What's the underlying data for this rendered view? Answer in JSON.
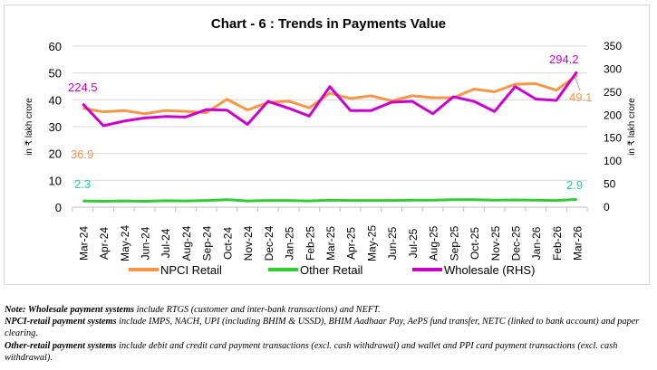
{
  "chart_data": {
    "type": "line",
    "title": "Chart - 6 : Trends in Payments Value",
    "ylabel_left": "in ₹ lakh crore",
    "ylabel_right": "in ₹ lakh crore",
    "ylim_left": [
      0,
      60
    ],
    "ylim_right": [
      0,
      350
    ],
    "yticks_left": [
      0,
      10,
      20,
      30,
      40,
      50,
      60
    ],
    "yticks_right": [
      0,
      50,
      100,
      150,
      200,
      250,
      300,
      350
    ],
    "grid": true,
    "legend_position": "bottom",
    "categories": [
      "Mar-24",
      "Apr-24",
      "May-24",
      "Jun-24",
      "Jul-24",
      "Aug-24",
      "Sep-24",
      "Oct-24",
      "Nov-24",
      "Dec-24",
      "Jan-25",
      "Feb-25",
      "Mar-25",
      "Apr-25",
      "May-25",
      "Jun-25",
      "Jul-25",
      "Aug-25",
      "Sep-25",
      "Oct-25",
      "Nov-25",
      "Dec-25",
      "Jan-26",
      "Feb-26",
      "Mar-26"
    ],
    "series": [
      {
        "name": "NPCI Retail",
        "axis": "left",
        "color": "#f79646",
        "values": [
          36.9,
          35.5,
          36.0,
          34.8,
          36.0,
          35.7,
          35.2,
          40.2,
          36.2,
          39.0,
          39.5,
          37.0,
          42.5,
          40.5,
          41.5,
          39.6,
          41.5,
          40.8,
          40.8,
          44.0,
          43.0,
          45.8,
          46.0,
          43.6,
          49.1
        ],
        "labels": {
          "first": "36.9",
          "last": "49.1"
        }
      },
      {
        "name": "Other Retail",
        "axis": "left",
        "color": "#33cc33",
        "values": [
          2.3,
          2.2,
          2.3,
          2.2,
          2.4,
          2.3,
          2.5,
          2.8,
          2.3,
          2.5,
          2.5,
          2.3,
          2.6,
          2.5,
          2.5,
          2.5,
          2.6,
          2.6,
          2.8,
          2.8,
          2.6,
          2.7,
          2.6,
          2.5,
          2.9
        ],
        "labels": {
          "first": "2.3",
          "last": "2.9"
        }
      },
      {
        "name": "Wholesale (RHS)",
        "axis": "right",
        "color": "#cc00cc",
        "values": [
          224.5,
          177,
          187,
          194,
          197,
          196,
          212,
          211,
          180,
          230,
          215,
          198,
          262,
          210,
          210,
          228,
          230,
          203,
          240,
          230,
          208,
          262,
          235,
          232,
          294.2
        ],
        "labels": {
          "first": "224.5",
          "last": "294.2"
        }
      }
    ]
  },
  "notes": {
    "line1_bold": "Note: Wholesale payment systems",
    "line1_rest": " include RTGS (customer and inter-bank transactions) and NEFT.",
    "line2_bold": "NPCI-retail payment systems",
    "line2_rest": " include IMPS, NACH, UPI (including BHIM & USSD), BHIM Aadhaar Pay, AePS fund transfer, NETC (linked to bank account) and paper clearing.",
    "line3_bold": "Other-retail payment systems",
    "line3_rest": " include debit and credit card payment transactions (excl. cash withdrawal) and wallet and PPI card payment transactions (excl. cash withdrawal)."
  }
}
